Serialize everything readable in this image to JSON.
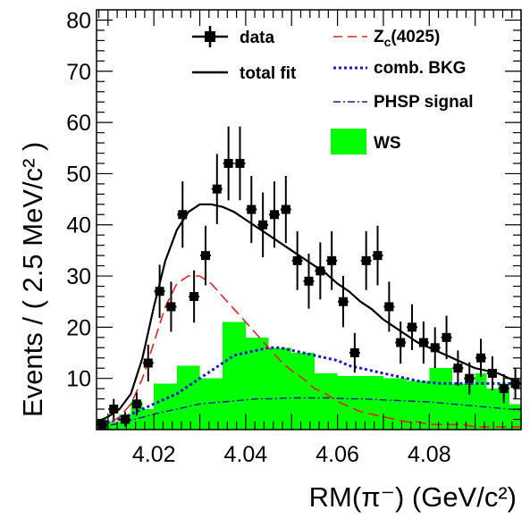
{
  "chart_data": {
    "type": "line",
    "xlabel": "RM(π⁻) (GeV/c²)",
    "ylabel": "Events / ( 2.5 MeV/c² )",
    "xlim": [
      4.0075,
      4.1
    ],
    "ylim": [
      0,
      82
    ],
    "xticks": [
      4.02,
      4.04,
      4.06,
      4.08
    ],
    "xtick_labels": [
      "4.02",
      "4.04",
      "4.06",
      "4.08"
    ],
    "yticks": [
      10,
      20,
      30,
      40,
      50,
      60,
      70,
      80
    ],
    "ytick_labels": [
      "10",
      "20",
      "30",
      "40",
      "50",
      "60",
      "70",
      "80"
    ],
    "legend": {
      "placement": "top-right",
      "data": "data",
      "total_fit": "total fit",
      "zc": "Z",
      "zc_sub": "c",
      "zc_tail": "(4025)",
      "comb": "comb. BKG",
      "phsp": "PHSP signal",
      "ws": "WS"
    },
    "colors": {
      "data": "#000000",
      "total_fit": "#000000",
      "zc": "#e3231f",
      "comb": "#1a1acc",
      "phsp": "#1a1a99",
      "ws": "#00ff00"
    },
    "data_points": {
      "x": [
        4.00875,
        4.01125,
        4.01375,
        4.01625,
        4.01875,
        4.02125,
        4.02375,
        4.02625,
        4.02875,
        4.03125,
        4.03375,
        4.03625,
        4.03875,
        4.04125,
        4.04375,
        4.04625,
        4.04875,
        4.05125,
        4.05375,
        4.05625,
        4.05875,
        4.06125,
        4.06375,
        4.06625,
        4.06875,
        4.07125,
        4.07375,
        4.07625,
        4.07875,
        4.08125,
        4.08375,
        4.08625,
        4.08875,
        4.09125,
        4.09375,
        4.09625,
        4.09875
      ],
      "y": [
        1,
        4,
        2,
        5,
        13,
        27,
        24,
        42,
        26,
        34,
        47,
        52,
        52,
        43,
        40,
        42,
        43,
        33,
        29,
        31,
        33,
        25,
        15,
        33,
        34,
        24,
        17,
        20,
        17,
        16,
        18,
        12,
        10,
        14,
        11,
        8,
        9
      ]
    },
    "ws_histogram": {
      "edges": [
        4.0075,
        4.01,
        4.0125,
        4.015,
        4.0175,
        4.02,
        4.025,
        4.03,
        4.035,
        4.04,
        4.045,
        4.05,
        4.055,
        4.06,
        4.065,
        4.07,
        4.075,
        4.08,
        4.085,
        4.09,
        4.0925,
        4.095,
        4.0975,
        4.1
      ],
      "values": [
        2,
        1.5,
        3,
        5.5,
        4,
        9,
        12.5,
        10,
        21,
        18,
        16,
        15,
        11,
        10.5,
        10.5,
        10,
        9.5,
        12,
        9,
        11,
        8,
        9,
        5
      ]
    },
    "curves": {
      "x": [
        4.0075,
        4.01,
        4.0125,
        4.015,
        4.0175,
        4.02,
        4.0225,
        4.025,
        4.0275,
        4.03,
        4.0325,
        4.035,
        4.0375,
        4.04,
        4.0425,
        4.045,
        4.0475,
        4.05,
        4.0525,
        4.055,
        4.0575,
        4.06,
        4.0625,
        4.065,
        4.0675,
        4.07,
        4.0725,
        4.075,
        4.0775,
        4.08,
        4.0825,
        4.085,
        4.0875,
        4.09,
        4.0925,
        4.095,
        4.0975,
        4.1
      ],
      "total_fit": [
        1.5,
        2.5,
        4,
        7,
        14,
        24,
        33,
        39,
        42.5,
        44,
        44,
        43.5,
        42.5,
        41,
        39.5,
        38,
        36.5,
        35,
        33.5,
        32,
        30.5,
        28.5,
        27,
        25,
        23.5,
        21.5,
        20,
        18.5,
        17,
        16,
        15,
        14,
        13,
        12,
        11.5,
        11,
        10,
        9
      ],
      "zc": [
        0.5,
        1,
        2.5,
        5,
        10,
        17,
        24,
        28.5,
        30,
        30,
        28.5,
        26,
        23.5,
        21,
        18.5,
        16,
        13.5,
        11.5,
        10,
        8,
        7,
        5.5,
        4.5,
        3.5,
        3,
        2.5,
        2,
        1.5,
        1.5,
        1,
        1,
        1,
        1,
        0.5,
        0.5,
        0.5,
        0.5,
        0.5
      ],
      "comb": [
        1,
        1.5,
        2,
        3,
        4,
        5,
        6,
        7,
        8.5,
        10,
        11.5,
        13,
        14.5,
        15,
        15.5,
        16,
        16,
        15.5,
        15,
        14.5,
        14,
        13.5,
        12.5,
        12,
        11.5,
        11,
        10.5,
        10,
        9.5,
        9.2,
        9,
        9,
        9,
        9,
        9,
        9,
        9,
        9
      ],
      "phsp": [
        0.5,
        0.8,
        1.2,
        1.8,
        2.4,
        3,
        3.5,
        4,
        4.5,
        5,
        5.2,
        5.4,
        5.6,
        5.8,
        6,
        6,
        6.1,
        6.2,
        6.2,
        6.2,
        6.2,
        6.1,
        6,
        6,
        5.9,
        5.8,
        5.7,
        5.6,
        5.5,
        5.4,
        5.2,
        5,
        4.8,
        4.6,
        4.4,
        4.2,
        4,
        3.8
      ]
    }
  }
}
